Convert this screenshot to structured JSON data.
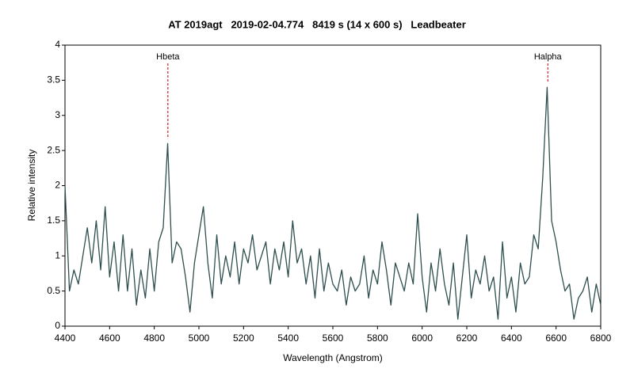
{
  "chart_data": {
    "type": "line",
    "title": "AT 2019agt   2019-02-04.774   8419 s (14 x 600 s)   Leadbeater",
    "x_label": "Wavelength (Angstrom)",
    "y_label": "Relative intensity",
    "color": "#2f4f4f",
    "x": [
      4400,
      4420,
      4440,
      4460,
      4480,
      4500,
      4520,
      4540,
      4560,
      4580,
      4600,
      4620,
      4640,
      4660,
      4680,
      4700,
      4720,
      4740,
      4760,
      4780,
      4800,
      4820,
      4840,
      4860,
      4880,
      4900,
      4920,
      4940,
      4960,
      4980,
      5000,
      5020,
      5040,
      5060,
      5080,
      5100,
      5120,
      5140,
      5160,
      5180,
      5200,
      5220,
      5240,
      5260,
      5280,
      5300,
      5320,
      5340,
      5360,
      5380,
      5400,
      5420,
      5440,
      5460,
      5480,
      5500,
      5520,
      5540,
      5560,
      5580,
      5600,
      5620,
      5640,
      5660,
      5680,
      5700,
      5720,
      5740,
      5760,
      5780,
      5800,
      5820,
      5840,
      5860,
      5880,
      5900,
      5920,
      5940,
      5960,
      5980,
      6000,
      6020,
      6040,
      6060,
      6080,
      6100,
      6120,
      6140,
      6160,
      6180,
      6200,
      6220,
      6240,
      6260,
      6280,
      6300,
      6320,
      6340,
      6360,
      6380,
      6400,
      6420,
      6440,
      6460,
      6480,
      6500,
      6520,
      6540,
      6560,
      6580,
      6600,
      6620,
      6640,
      6660,
      6680,
      6700,
      6720,
      6740,
      6760,
      6780,
      6800
    ],
    "values": [
      2.0,
      0.5,
      0.8,
      0.6,
      1.0,
      1.4,
      0.9,
      1.5,
      0.8,
      1.7,
      0.7,
      1.2,
      0.5,
      1.3,
      0.5,
      1.1,
      0.3,
      0.8,
      0.4,
      1.1,
      0.5,
      1.2,
      1.4,
      2.6,
      0.9,
      1.2,
      1.1,
      0.7,
      0.2,
      0.9,
      1.3,
      1.7,
      0.9,
      0.4,
      1.3,
      0.6,
      1.0,
      0.7,
      1.2,
      0.6,
      1.1,
      0.9,
      1.3,
      0.8,
      1.0,
      1.2,
      0.6,
      1.1,
      0.8,
      1.2,
      0.7,
      1.5,
      0.9,
      1.1,
      0.6,
      1.0,
      0.4,
      1.1,
      0.5,
      0.9,
      0.6,
      0.5,
      0.8,
      0.3,
      0.7,
      0.5,
      0.6,
      1.0,
      0.4,
      0.8,
      0.6,
      1.2,
      0.8,
      0.3,
      0.9,
      0.7,
      0.5,
      0.9,
      0.6,
      1.6,
      0.7,
      0.2,
      0.9,
      0.5,
      1.1,
      0.6,
      0.3,
      0.9,
      0.1,
      0.7,
      1.3,
      0.4,
      0.8,
      0.6,
      1.0,
      0.5,
      0.7,
      0.1,
      1.2,
      0.4,
      0.7,
      0.2,
      0.9,
      0.6,
      0.7,
      1.3,
      1.1,
      2.1,
      3.4,
      1.5,
      1.2,
      0.8,
      0.5,
      0.6,
      0.1,
      0.4,
      0.5,
      0.7,
      0.2,
      0.6,
      0.3
    ],
    "xlim": [
      4400,
      6800
    ],
    "xticks": [
      4400,
      4600,
      4800,
      5000,
      5200,
      5400,
      5600,
      5800,
      6000,
      6200,
      6400,
      6600,
      6800
    ],
    "ylim": [
      0,
      4
    ],
    "yticks": [
      0,
      0.5,
      1,
      1.5,
      2,
      2.5,
      3,
      3.5,
      4
    ],
    "grid": false,
    "annotations": [
      {
        "text": "Hbeta",
        "x": 4861
      },
      {
        "text": "Halpha",
        "x": 6563
      }
    ]
  }
}
